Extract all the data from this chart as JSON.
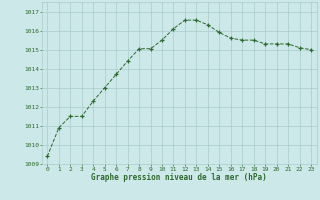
{
  "x": [
    0,
    1,
    2,
    3,
    4,
    5,
    6,
    7,
    8,
    9,
    10,
    11,
    12,
    13,
    14,
    15,
    16,
    17,
    18,
    19,
    20,
    21,
    22,
    23
  ],
  "y": [
    1009.4,
    1010.9,
    1011.5,
    1011.5,
    1012.3,
    1013.0,
    1013.7,
    1014.4,
    1015.05,
    1015.05,
    1015.5,
    1016.1,
    1016.55,
    1016.55,
    1016.3,
    1015.9,
    1015.6,
    1015.5,
    1015.5,
    1015.3,
    1015.3,
    1015.3,
    1015.1,
    1015.0
  ],
  "line_color": "#2d6a2d",
  "marker": "+",
  "marker_color": "#2d6a2d",
  "bg_color": "#cce8e8",
  "grid_color": "#aacccc",
  "xlabel": "Graphe pression niveau de la mer (hPa)",
  "xlabel_color": "#2d6a2d",
  "tick_color": "#2d6a2d",
  "ylim": [
    1009,
    1017.5
  ],
  "yticks": [
    1009,
    1010,
    1011,
    1012,
    1013,
    1014,
    1015,
    1016,
    1017
  ],
  "xticks": [
    0,
    1,
    2,
    3,
    4,
    5,
    6,
    7,
    8,
    9,
    10,
    11,
    12,
    13,
    14,
    15,
    16,
    17,
    18,
    19,
    20,
    21,
    22,
    23
  ],
  "figsize": [
    3.2,
    2.0
  ],
  "dpi": 100
}
